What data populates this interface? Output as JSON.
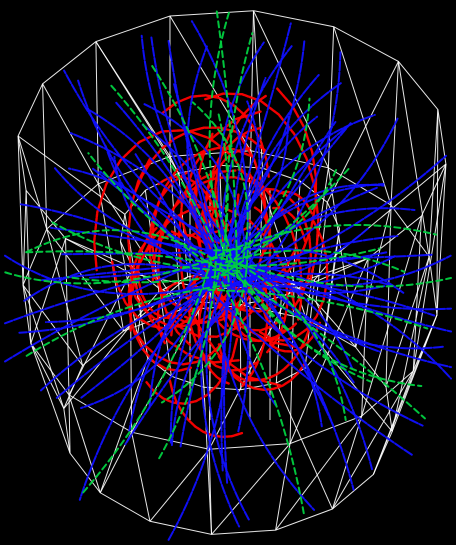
{
  "scene": {
    "background": "#000000",
    "colors": {
      "mesh": "#ffffff",
      "track_primary": "#ff0000",
      "track_secondary": "#1010ff",
      "track_tertiary": "#00d040"
    },
    "track_counts": {
      "red": 60,
      "blue": 95,
      "green": 30
    },
    "random_seed": 7
  }
}
